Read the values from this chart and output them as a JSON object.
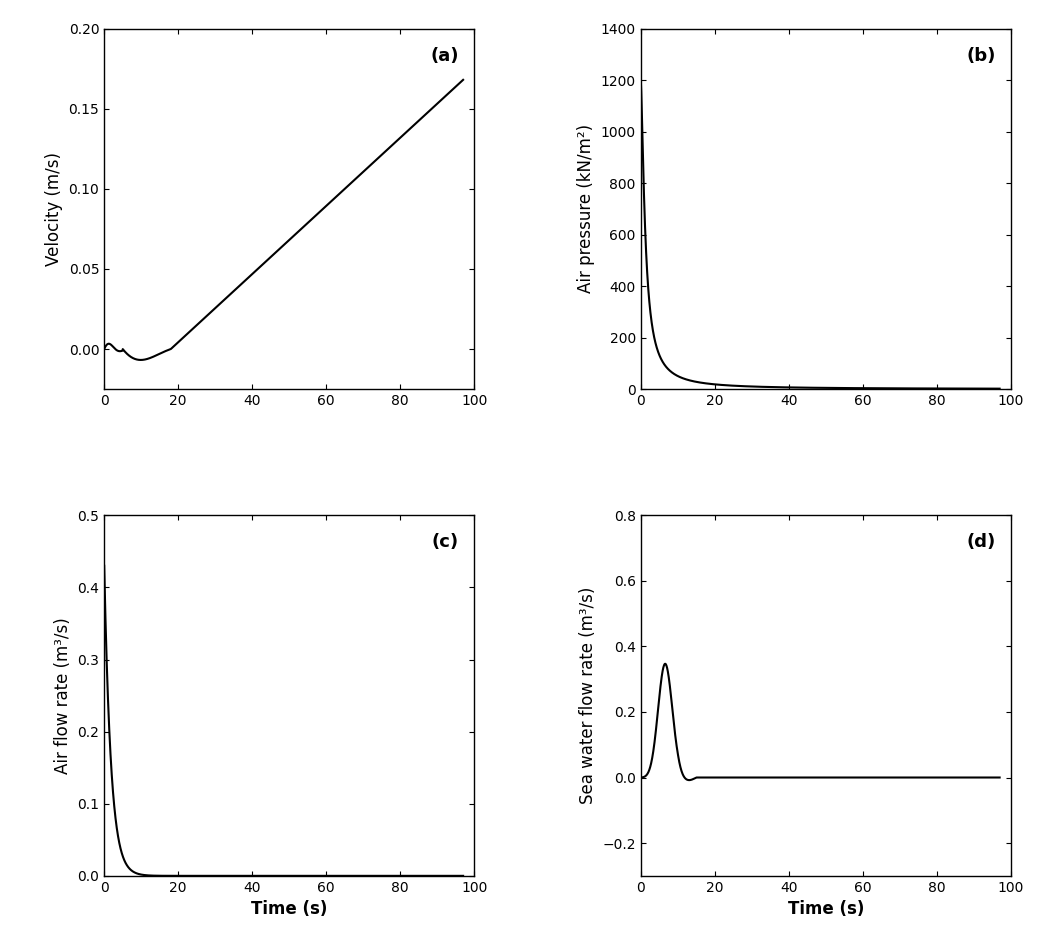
{
  "panels": [
    "a",
    "b",
    "c",
    "d"
  ],
  "xlim": [
    0,
    100
  ],
  "panel_a": {
    "label": "(a)",
    "ylabel": "Velocity (m/s)",
    "ylim": [
      -0.025,
      0.2
    ],
    "yticks": [
      0.0,
      0.05,
      0.1,
      0.15,
      0.2
    ]
  },
  "panel_b": {
    "label": "(b)",
    "ylabel": "Air pressure (kN/m²)",
    "ylim": [
      0,
      1400
    ],
    "yticks": [
      0,
      200,
      400,
      600,
      800,
      1000,
      1200,
      1400
    ]
  },
  "panel_c": {
    "label": "(c)",
    "ylabel": "Air flow rate (m³/s)",
    "ylim": [
      0,
      0.5
    ],
    "yticks": [
      0.0,
      0.1,
      0.2,
      0.3,
      0.4,
      0.5
    ],
    "xlabel": "Time (s)"
  },
  "panel_d": {
    "label": "(d)",
    "ylabel": "Sea water flow rate (m³/s)",
    "ylim": [
      -0.3,
      0.8
    ],
    "yticks": [
      -0.2,
      0.0,
      0.2,
      0.4,
      0.6,
      0.8
    ],
    "xlabel": "Time (s)"
  },
  "xticks": [
    0,
    20,
    40,
    60,
    80,
    100
  ],
  "line_color": "#000000",
  "line_width": 1.5,
  "label_fontsize": 12,
  "tick_fontsize": 10,
  "panel_label_fontsize": 13,
  "background_color": "#ffffff"
}
